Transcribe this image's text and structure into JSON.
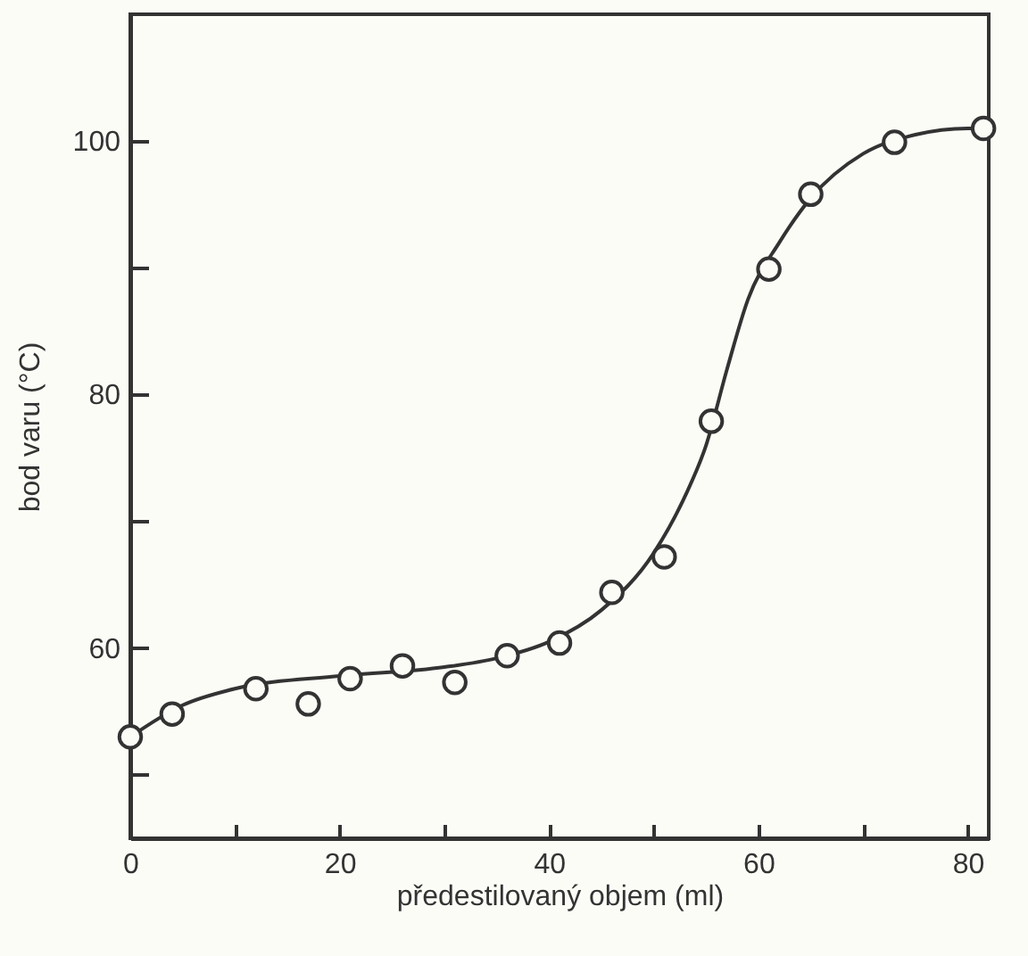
{
  "chart_data": {
    "type": "scatter",
    "xlabel": "předestilovaný objem (ml)",
    "ylabel": "bod varu (°C)",
    "xlim": [
      0,
      82
    ],
    "ylim": [
      45,
      110
    ],
    "xticks": [
      0,
      {
        "value": 10,
        "label": null
      },
      20,
      {
        "value": 30,
        "label": null
      },
      40,
      {
        "value": 50,
        "label": null
      },
      60,
      {
        "value": 70,
        "label": null
      },
      80
    ],
    "yticks": [
      {
        "value": 50,
        "label": null
      },
      60,
      {
        "value": 70,
        "label": null
      },
      80,
      {
        "value": 90,
        "label": null
      },
      100
    ],
    "grid": false,
    "series": [
      {
        "type": "line",
        "color": "#333333",
        "marker": "none",
        "x": [
          0,
          5,
          10,
          20,
          30,
          35,
          40,
          45,
          50,
          53,
          55,
          57,
          59,
          62,
          65,
          70,
          75,
          80,
          81.5
        ],
        "values": [
          53,
          55.5,
          56.8,
          57.8,
          58.5,
          59.2,
          60.5,
          63,
          67.5,
          72,
          76,
          82,
          87.5,
          92,
          95.5,
          99,
          100.5,
          101,
          101
        ]
      },
      {
        "color": "#333333",
        "marker": "circle",
        "x": [
          0,
          4,
          12,
          17,
          21,
          26,
          31,
          36,
          41,
          46,
          51,
          55.5,
          61,
          65,
          73,
          81.5
        ],
        "values": [
          53,
          54.8,
          56.8,
          55.6,
          57.6,
          58.6,
          57.3,
          59.4,
          60.4,
          64.4,
          67.2,
          77.9,
          89.9,
          95.8,
          99.9,
          101
        ]
      }
    ]
  }
}
